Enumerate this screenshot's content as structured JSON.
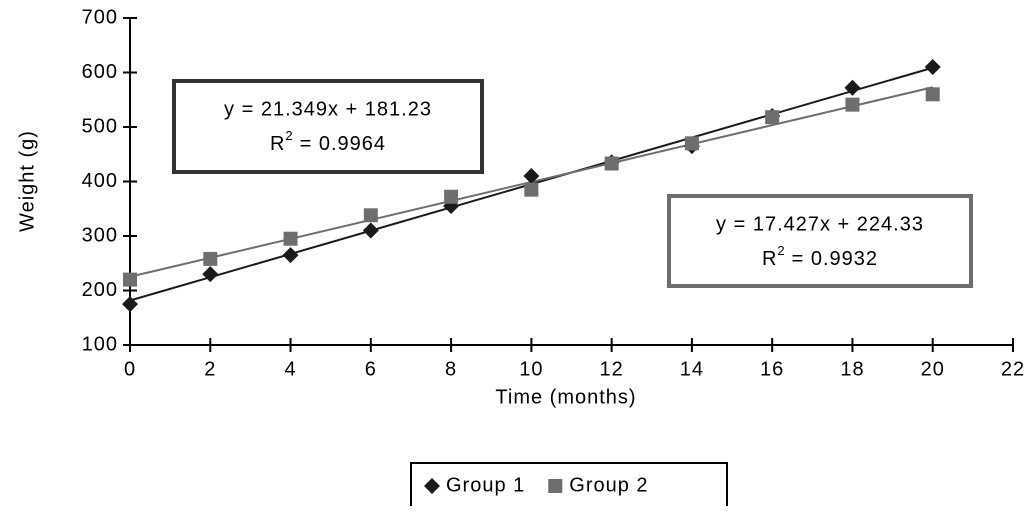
{
  "chart_data": {
    "type": "scatter",
    "x_label": "Time (months)",
    "y_label": "Weight (g)",
    "x": [
      0,
      2,
      4,
      6,
      8,
      10,
      12,
      14,
      16,
      18,
      20
    ],
    "series": [
      {
        "name": "Group 1",
        "color": "#1a1a1a",
        "marker": "diamond",
        "values": [
          175,
          230,
          265,
          310,
          355,
          410,
          435,
          465,
          520,
          572,
          610
        ],
        "trendline": {
          "equation": "y = 21.349x + 181.23",
          "r2_symbol": "R",
          "r2_power": "2",
          "r2_value": "= 0.9964"
        }
      },
      {
        "name": "Group 2",
        "color": "#6e6e6e",
        "marker": "square",
        "values": [
          220,
          258,
          295,
          338,
          372,
          385,
          433,
          470,
          518,
          541,
          560
        ],
        "trendline": {
          "equation": "y = 17.427x + 224.33",
          "r2_symbol": "R",
          "r2_power": "2",
          "r2_value": "= 0.9932"
        }
      }
    ],
    "xlim": [
      0,
      22
    ],
    "xticks": [
      0,
      2,
      4,
      6,
      8,
      10,
      12,
      14,
      16,
      18,
      20,
      22
    ],
    "ylim": [
      100,
      700
    ],
    "yticks": [
      100,
      200,
      300,
      400,
      500,
      600,
      700
    ],
    "legend": "bottom"
  }
}
